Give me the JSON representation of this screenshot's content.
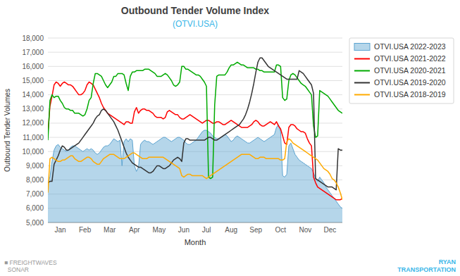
{
  "chart_data": {
    "type": "line",
    "title": "Outbound Tender Volume Index",
    "subtitle": "(OTVI.USA)",
    "x_label": "Month",
    "y_label": "Outbound Tender Volumes",
    "ylim": [
      5000,
      18000
    ],
    "yticks": [
      {
        "value": 5000,
        "label": "5,000"
      },
      {
        "value": 6000,
        "label": "6,000"
      },
      {
        "value": 7000,
        "label": "7,000"
      },
      {
        "value": 8000,
        "label": "8,000"
      },
      {
        "value": 9000,
        "label": "9,000"
      },
      {
        "value": 10000,
        "label": "10,000"
      },
      {
        "value": 11000,
        "label": "11,000"
      },
      {
        "value": 12000,
        "label": "12,000"
      },
      {
        "value": 13000,
        "label": "13,000"
      },
      {
        "value": 14000,
        "label": "14,000"
      },
      {
        "value": 15000,
        "label": "15,000"
      },
      {
        "value": 16000,
        "label": "16,000"
      },
      {
        "value": 17000,
        "label": "17,000"
      },
      {
        "value": 18000,
        "label": "18,000"
      }
    ],
    "grid": true,
    "legend": "right",
    "categories": [
      null,
      null,
      null,
      null,
      null,
      null,
      "Jan",
      null,
      null,
      null,
      null,
      null,
      null,
      null,
      null,
      null,
      null,
      null,
      "Feb",
      null,
      null,
      null,
      null,
      null,
      null,
      null,
      null,
      null,
      null,
      null,
      "Mar",
      null,
      null,
      null,
      null,
      null,
      null,
      null,
      null,
      null,
      null,
      null,
      "Apr",
      null,
      null,
      null,
      null,
      null,
      null,
      null,
      null,
      null,
      null,
      null,
      "May",
      null,
      null,
      null,
      null,
      null,
      null,
      null,
      null,
      null,
      null,
      null,
      "Jun",
      null,
      null,
      null,
      null,
      null,
      null,
      null,
      null,
      null,
      null,
      "Jul",
      null,
      null,
      null,
      null,
      null,
      null,
      null,
      null,
      null,
      null,
      null,
      "Aug",
      null,
      null,
      null,
      null,
      null,
      null,
      null,
      null,
      null,
      null,
      null,
      "Sep",
      null,
      null,
      null,
      null,
      null,
      null,
      null,
      null,
      null,
      null,
      null,
      "Oct",
      null,
      null,
      null,
      null,
      null,
      null,
      null,
      null,
      null,
      null,
      null,
      "Nov",
      null,
      null,
      null,
      null,
      null,
      null,
      null,
      null,
      null,
      null,
      null,
      "Dec",
      null,
      null,
      null,
      null,
      null,
      null
    ],
    "series": [
      {
        "name": "OTVI.USA 2022-2023",
        "type": "area",
        "color": "#5ba3d0",
        "values": [
          7800,
          8200,
          9300,
          10100,
          10400,
          10500,
          10300,
          10200,
          10100,
          10000,
          10100,
          10300,
          10400,
          10400,
          10300,
          10200,
          10100,
          10000,
          10100,
          10200,
          10100,
          10200,
          10100,
          9900,
          9800,
          9900,
          10100,
          10300,
          10400,
          10400,
          10500,
          10700,
          10900,
          10800,
          10700,
          10800,
          9000,
          10700,
          10900,
          10700,
          10900,
          10800,
          9000,
          8600,
          8900,
          10500,
          10700,
          10800,
          10700,
          10700,
          10600,
          10500,
          10600,
          10700,
          10800,
          10900,
          11000,
          11000,
          10900,
          10800,
          10700,
          10800,
          10900,
          11000,
          11000,
          10900,
          10800,
          10600,
          10500,
          10500,
          10600,
          10700,
          10800,
          11000,
          11200,
          11400,
          11500,
          11500,
          11400,
          11300,
          11100,
          11000,
          10900,
          10900,
          11000,
          11100,
          11200,
          11100,
          10900,
          10700,
          10800,
          11000,
          11100,
          11000,
          10900,
          10800,
          10700,
          10600,
          10600,
          10700,
          10800,
          10900,
          11000,
          10900,
          10800,
          10700,
          10800,
          10900,
          11000,
          11100,
          11200,
          11700,
          11900,
          11400,
          8300,
          8200,
          8400,
          10400,
          10600,
          10200,
          9800,
          9600,
          9400,
          9300,
          9200,
          9100,
          9000,
          8900,
          8800,
          8500,
          8100,
          7900,
          8200,
          8000,
          7800,
          7500,
          7300,
          7100,
          6900,
          6700,
          6500,
          6300,
          6100,
          6000
        ]
      },
      {
        "name": "OTVI.USA 2021-2022",
        "type": "line",
        "color": "#ff0000",
        "values": [
          11300,
          13200,
          13900,
          14700,
          14900,
          14800,
          14600,
          14800,
          14900,
          14800,
          14700,
          14700,
          14600,
          14400,
          14200,
          14000,
          14000,
          14100,
          14300,
          14700,
          14900,
          14800,
          14700,
          14400,
          14100,
          13800,
          13400,
          13100,
          12900,
          12700,
          12600,
          12500,
          12400,
          12300,
          12200,
          12100,
          12000,
          11900,
          12100,
          12100,
          12000,
          12000,
          12800,
          13100,
          12700,
          12900,
          13000,
          13000,
          12900,
          12900,
          12800,
          12700,
          12500,
          12400,
          12400,
          12400,
          12300,
          12400,
          12800,
          12900,
          12800,
          12700,
          12600,
          12600,
          12400,
          12300,
          12300,
          12400,
          12500,
          12600,
          12500,
          12400,
          12300,
          12200,
          12100,
          12000,
          12100,
          12200,
          12200,
          12100,
          12000,
          12000,
          12100,
          12100,
          12000,
          11900,
          11900,
          12000,
          12100,
          12200,
          12100,
          12000,
          11900,
          11800,
          11700,
          11700,
          11700,
          11700,
          11800,
          11900,
          12100,
          12200,
          12100,
          11900,
          11800,
          11800,
          11900,
          12000,
          12100,
          12000,
          11900,
          12100,
          11800,
          11600,
          11100,
          10600,
          10500,
          11700,
          11900,
          11900,
          11800,
          11600,
          11500,
          11400,
          11400,
          11300,
          10900,
          10600,
          10400,
          8200,
          7800,
          7500,
          7400,
          7300,
          7200,
          7100,
          7000,
          6900,
          6800,
          6700,
          6600,
          6600,
          6600,
          6700
        ]
      },
      {
        "name": "OTVI.USA 2020-2021",
        "type": "line",
        "color": "#00aa00",
        "values": [
          10800,
          13600,
          14000,
          13800,
          13900,
          13900,
          13600,
          13400,
          13100,
          13000,
          13000,
          12900,
          12900,
          12700,
          12700,
          12700,
          12600,
          12500,
          12600,
          13000,
          13600,
          13800,
          14800,
          15500,
          15500,
          15400,
          15300,
          15000,
          14700,
          14500,
          14700,
          14900,
          15300,
          15300,
          15500,
          15500,
          15500,
          15400,
          14800,
          14300,
          15300,
          15600,
          15600,
          15700,
          15700,
          15700,
          15700,
          15800,
          15800,
          15800,
          15700,
          15600,
          15500,
          15300,
          15300,
          15300,
          15400,
          15500,
          15400,
          15200,
          15000,
          14700,
          14600,
          14700,
          14900,
          16000,
          16000,
          15800,
          15800,
          15700,
          15600,
          15500,
          15400,
          15400,
          15300,
          15100,
          14900,
          14600,
          8200,
          8100,
          8200,
          13300,
          15300,
          15400,
          15400,
          15400,
          15400,
          15600,
          15900,
          16100,
          16100,
          16200,
          16300,
          16200,
          16100,
          16100,
          16000,
          15900,
          15900,
          15900,
          15900,
          15800,
          15800,
          15700,
          15700,
          15600,
          15600,
          15600,
          15600,
          15600,
          15600,
          16100,
          16100,
          16000,
          13800,
          13600,
          13700,
          15000,
          15400,
          15500,
          15400,
          15200,
          15000,
          14800,
          14700,
          14600,
          14400,
          14200,
          14000,
          11800,
          11000,
          11100,
          14300,
          14200,
          14100,
          14000,
          13900,
          13700,
          13500,
          13300,
          13100,
          12900,
          12800,
          12700
        ]
      },
      {
        "name": "OTVI.USA 2019-2020",
        "type": "line",
        "color": "#333333",
        "values": [
          7800,
          7900,
          7900,
          9100,
          9400,
          9700,
          10100,
          10400,
          10300,
          10100,
          10100,
          10200,
          10300,
          10400,
          10500,
          10600,
          10800,
          11000,
          11200,
          11400,
          11600,
          11800,
          12000,
          12300,
          12500,
          12600,
          12900,
          13000,
          12900,
          12700,
          12500,
          12300,
          12100,
          11800,
          11500,
          11100,
          10700,
          10300,
          9900,
          9600,
          9400,
          9200,
          9100,
          9000,
          8900,
          8900,
          8800,
          8700,
          8600,
          8500,
          8500,
          8600,
          8800,
          9000,
          9000,
          8900,
          8800,
          8800,
          8900,
          9000,
          9200,
          9400,
          9500,
          9600,
          9500,
          9300,
          10600,
          10900,
          10900,
          10800,
          10800,
          10800,
          10800,
          10800,
          10800,
          10800,
          10800,
          10900,
          11000,
          11000,
          10900,
          10800,
          10800,
          10900,
          11000,
          11100,
          11200,
          11300,
          11400,
          11500,
          11600,
          11700,
          11800,
          11900,
          12100,
          12300,
          12600,
          13000,
          13500,
          14100,
          14800,
          15600,
          16300,
          16600,
          16600,
          16400,
          16200,
          16000,
          15900,
          15800,
          15700,
          15600,
          15500,
          15400,
          15300,
          15200,
          15100,
          15100,
          15100,
          15100,
          15100,
          15100,
          15700,
          15600,
          15500,
          15300,
          15100,
          14900,
          14700,
          14100,
          8100,
          8000,
          7900,
          7800,
          7700,
          7600,
          7500,
          7500,
          7500,
          7400,
          7300,
          10200,
          10100,
          10100
        ]
      },
      {
        "name": "OTVI.USA 2018-2019",
        "type": "line",
        "color": "#ffaa00",
        "values": [
          7100,
          9500,
          9600,
          9500,
          9400,
          9300,
          9300,
          9400,
          9400,
          9500,
          9600,
          9700,
          9700,
          9500,
          9400,
          9300,
          9300,
          9400,
          9500,
          9600,
          9600,
          9500,
          9300,
          9200,
          9100,
          9100,
          9300,
          9500,
          9600,
          9700,
          9800,
          9800,
          9800,
          9700,
          9600,
          9500,
          9500,
          9500,
          9600,
          9700,
          9800,
          9900,
          9900,
          9800,
          9700,
          9600,
          9500,
          9500,
          9500,
          9600,
          9600,
          9600,
          9600,
          9600,
          9600,
          9600,
          9600,
          9500,
          9400,
          9300,
          9200,
          9100,
          9000,
          8900,
          8800,
          8300,
          8200,
          8300,
          8400,
          8400,
          8300,
          8300,
          8300,
          8300,
          8300,
          8300,
          8200,
          8100,
          8200,
          8300,
          8400,
          8500,
          8600,
          8700,
          8800,
          8900,
          9000,
          9100,
          9200,
          9300,
          9400,
          9500,
          9600,
          9700,
          9800,
          9800,
          9800,
          9800,
          9800,
          9700,
          9600,
          9500,
          9500,
          9600,
          9600,
          9600,
          9500,
          9500,
          9500,
          9500,
          9500,
          9500,
          9500,
          9400,
          9400,
          9500,
          10700,
          10900,
          10800,
          10600,
          10500,
          10400,
          10300,
          10200,
          10100,
          10000,
          9900,
          9800,
          9700,
          9600,
          9500,
          9400,
          9200,
          9000,
          8800,
          8700,
          8600,
          8400,
          8100,
          8000,
          7800,
          7500,
          7100,
          6600
        ]
      }
    ],
    "annotations": [
      {
        "text": "■ FREIGHTWAVES\n  SONAR",
        "color": "#999999"
      },
      {
        "text": "RYAN\nTRANSPORTATION",
        "color": "#38b6e8"
      }
    ]
  }
}
